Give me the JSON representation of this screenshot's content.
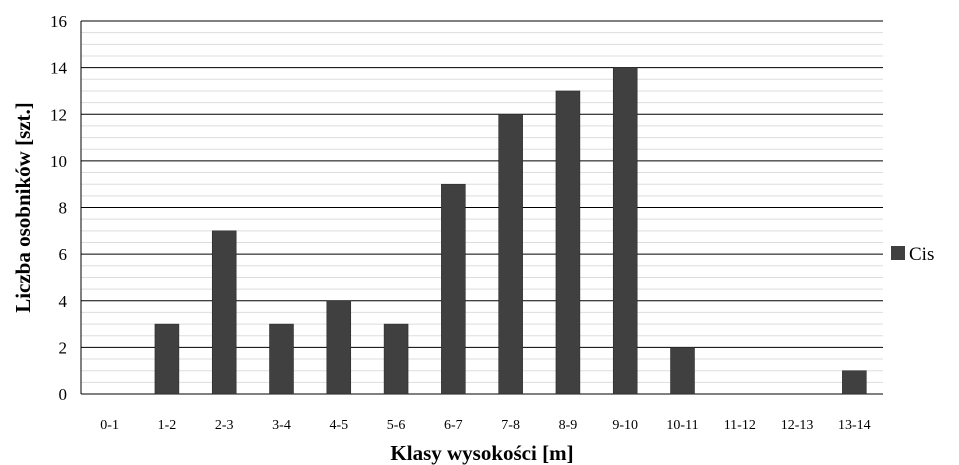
{
  "chart_data": {
    "type": "bar",
    "title": "",
    "xlabel": "Klasy wysokości [m]",
    "ylabel": "Liczba osobników [szt.]",
    "categories": [
      "0-1",
      "1-2",
      "2-3",
      "3-4",
      "4-5",
      "5-6",
      "6-7",
      "7-8",
      "8-9",
      "9-10",
      "10-11",
      "11-12",
      "12-13",
      "13-14"
    ],
    "series": [
      {
        "name": "Cis",
        "values": [
          0,
          3,
          7,
          3,
          4,
          3,
          9,
          12,
          13,
          14,
          2,
          0,
          0,
          1
        ]
      }
    ],
    "ylim": [
      0,
      16
    ],
    "yticks": [
      0,
      2,
      4,
      6,
      8,
      10,
      12,
      14,
      16
    ],
    "grid": true,
    "legend": "right",
    "colors": {
      "bar": "#404040",
      "grid": "#000000",
      "minor_grid": "#dddddd"
    }
  }
}
